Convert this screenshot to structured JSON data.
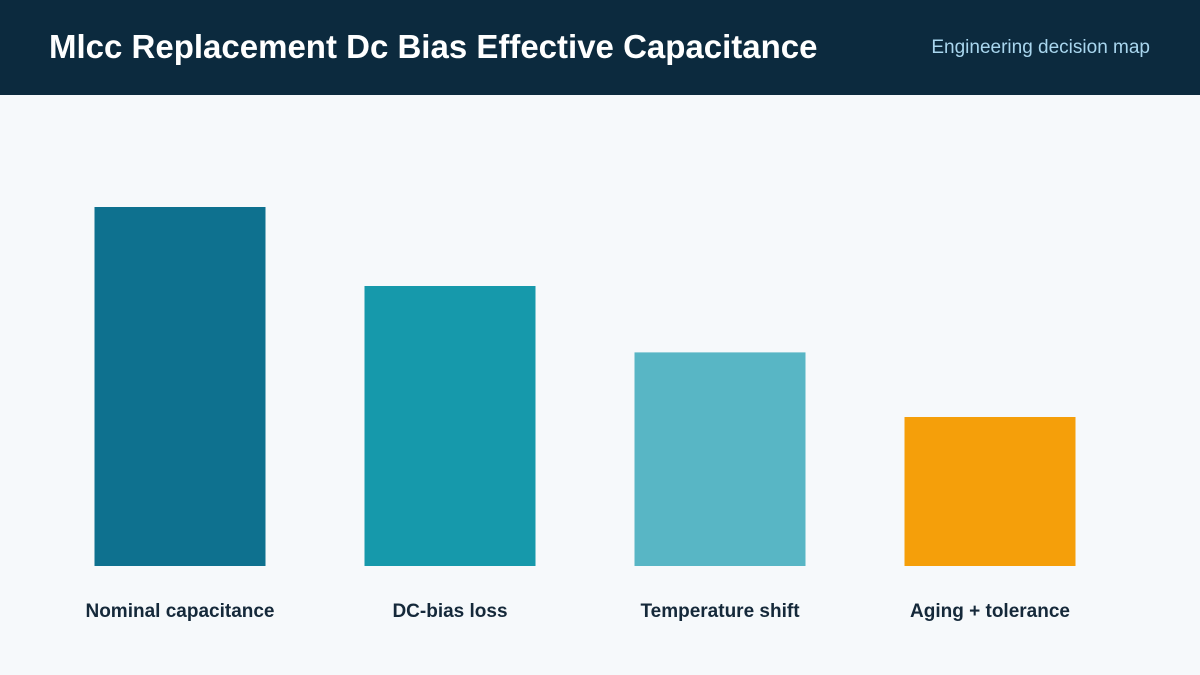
{
  "header": {
    "title": "Mlcc Replacement Dc Bias Effective Capacitance",
    "subtitle": "Engineering decision map"
  },
  "chart_data": {
    "type": "bar",
    "title": "Mlcc Replacement Dc Bias Effective Capacitance",
    "subtitle": "Engineering decision map",
    "categories": [
      "Nominal capacitance",
      "DC-bias loss",
      "Temperature shift",
      "Aging + tolerance"
    ],
    "values": [
      100,
      78,
      59.5,
      41.5
    ],
    "colors": [
      "#0e718f",
      "#1699ab",
      "#58b6c5",
      "#f59f0a"
    ],
    "ylim": [
      0,
      100
    ],
    "xlabel": "",
    "ylabel": "",
    "grid": false,
    "legend": "none"
  },
  "colors": {
    "header_bg": "#0c2a3e",
    "page_bg": "#f6f9fb",
    "title": "#ffffff",
    "subtitle": "#a9d6ee",
    "label": "#15293a"
  }
}
